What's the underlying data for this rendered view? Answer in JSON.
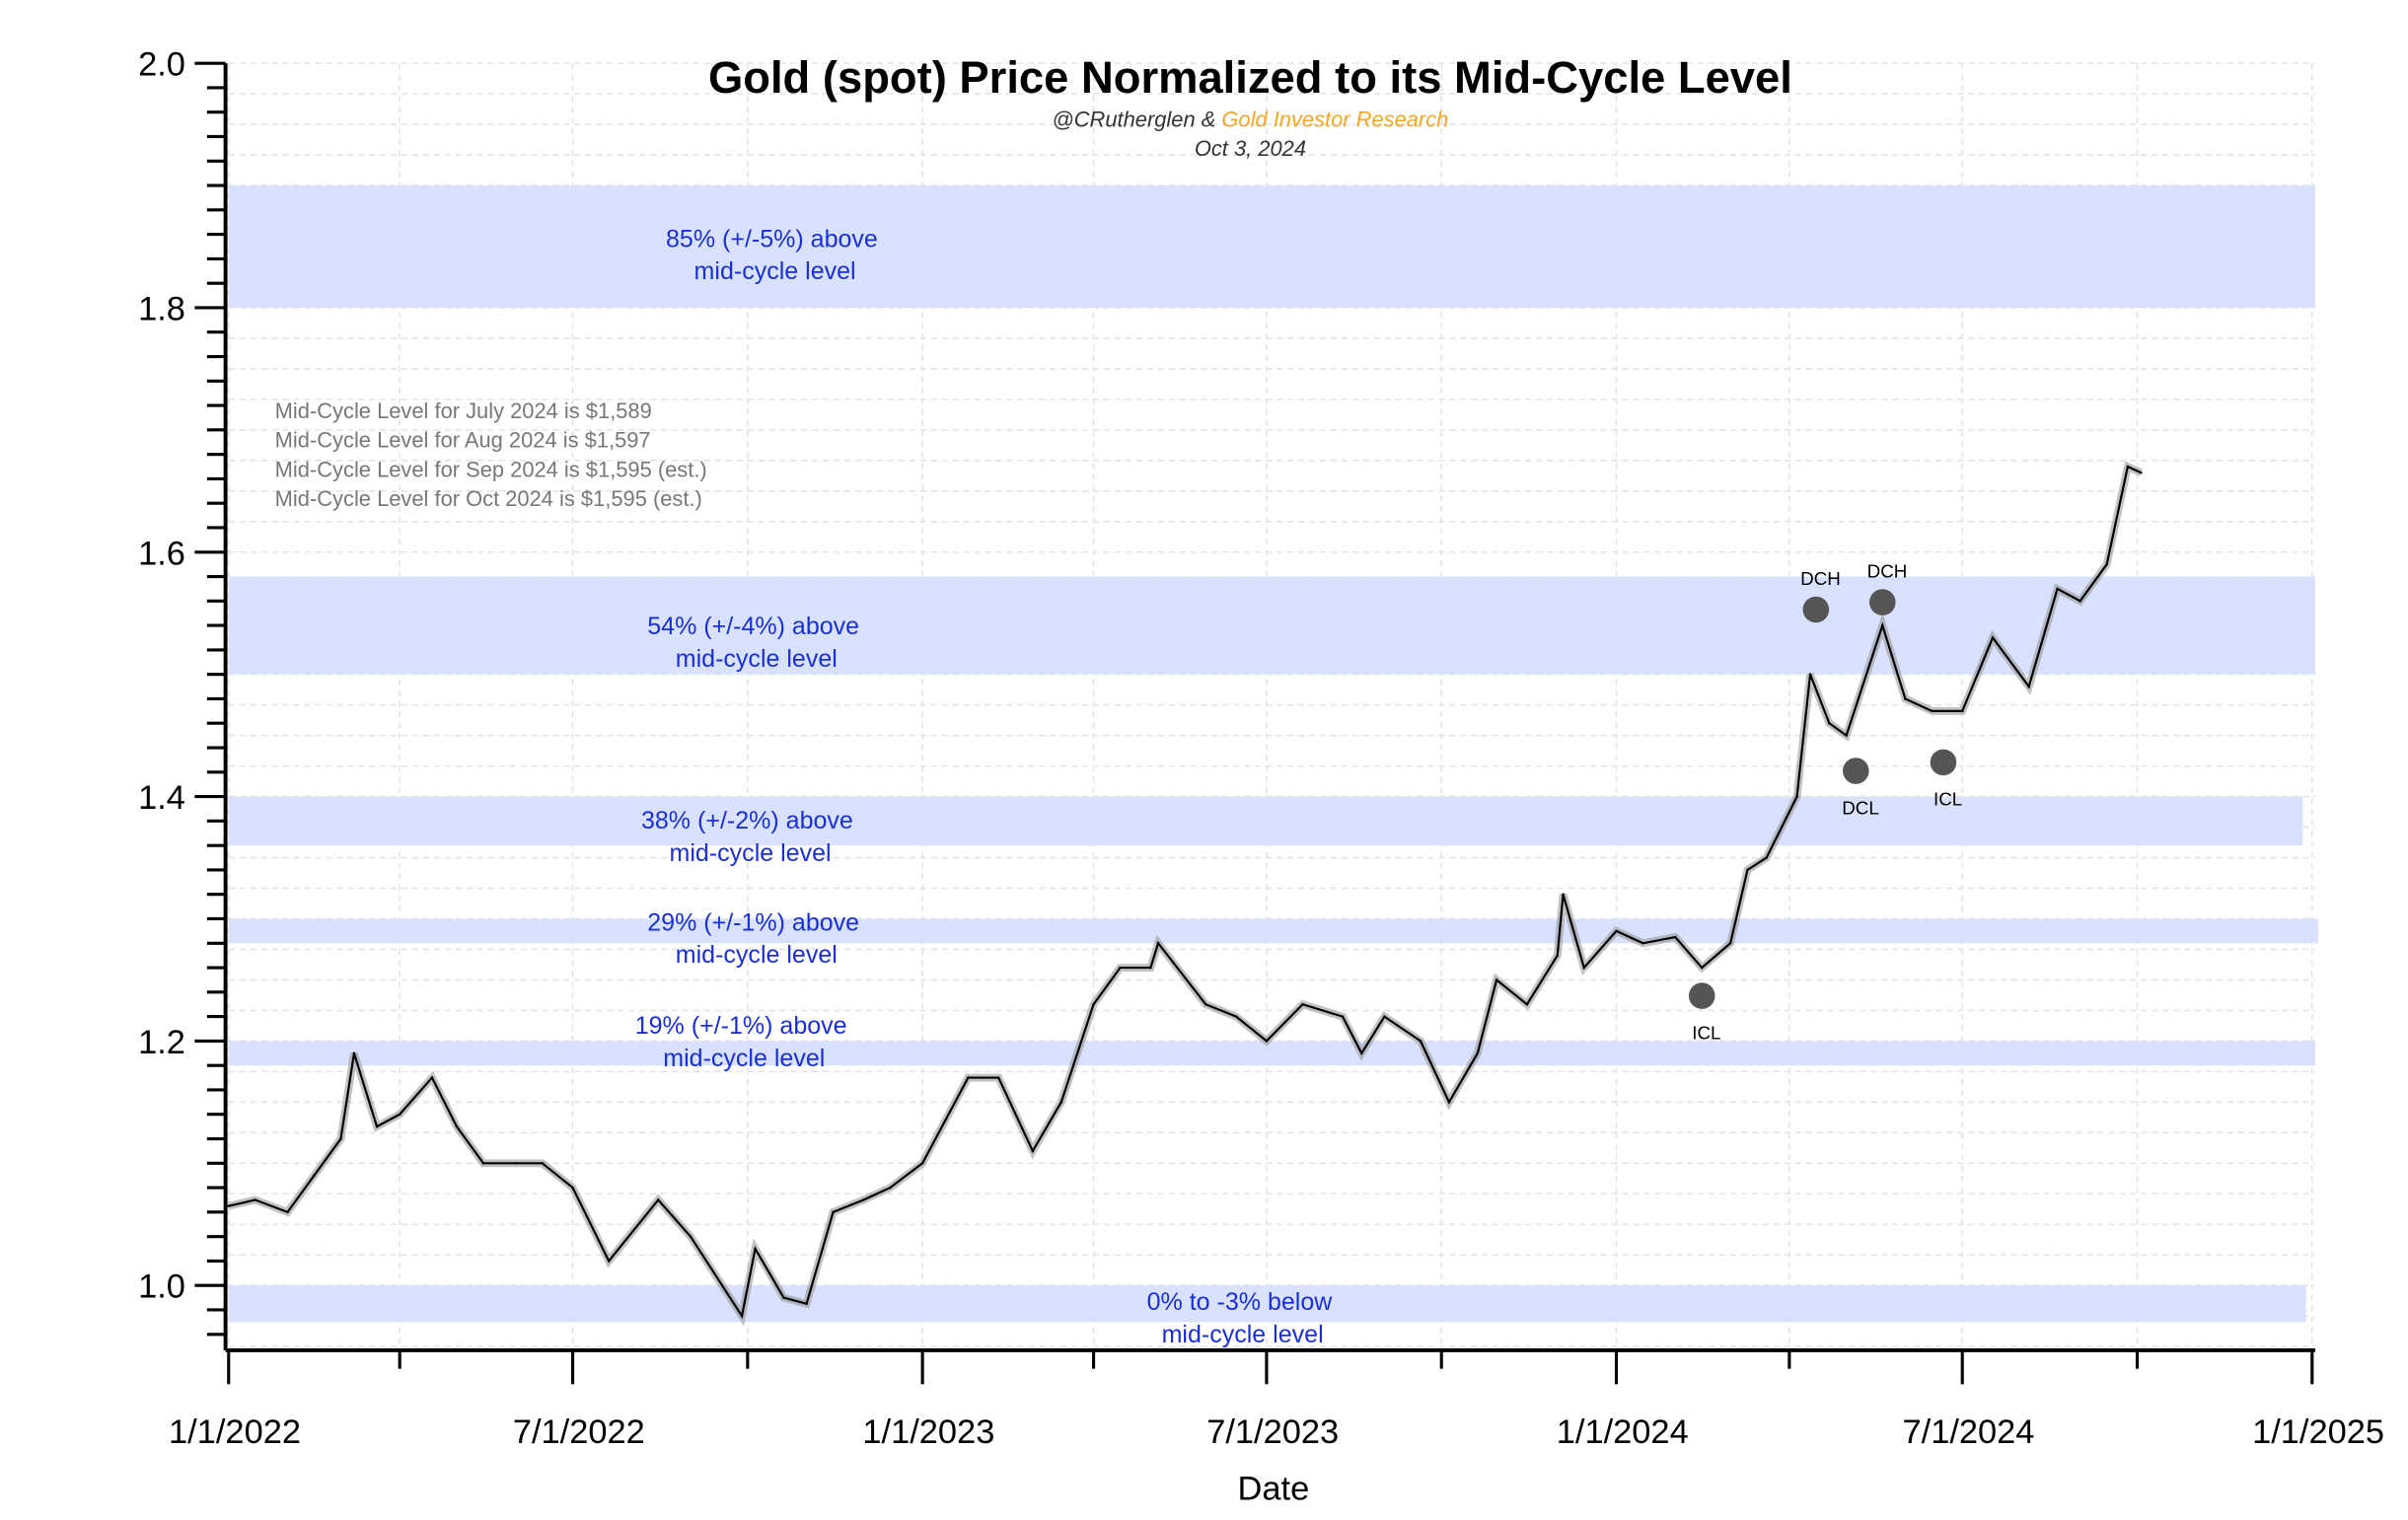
{
  "chart_data": {
    "type": "line",
    "title": "Gold (spot) Price Normalized to its Mid-Cycle Level",
    "subtitle_author": "@CRutherglen & ",
    "subtitle_brand": "Gold Investor Research",
    "date": "Oct 3, 2024",
    "xlabel": "Date",
    "ylabel": "",
    "xlim": [
      "2022-01-01",
      "2025-01-01"
    ],
    "ylim": [
      0.947,
      2.0
    ],
    "grid": true,
    "x_ticks": [
      "1/1/2022",
      "7/1/2022",
      "1/1/2023",
      "7/1/2023",
      "1/1/2024",
      "7/1/2024",
      "1/1/2025"
    ],
    "x_tick_dates": [
      "2022-01-01",
      "2022-07-01",
      "2023-01-01",
      "2023-07-01",
      "2024-01-01",
      "2024-07-01",
      "2025-01-01"
    ],
    "y_ticks": [
      "1.0",
      "1.2",
      "1.4",
      "1.6",
      "1.8",
      "2.0"
    ],
    "y_tick_values": [
      1.0,
      1.2,
      1.4,
      1.6,
      1.8,
      2.0
    ],
    "colors": {
      "line": "#000000",
      "band": "#d6e0ff",
      "band_text": "#1a2fd6",
      "brand": "#f5a623",
      "marker": "#555555",
      "note": "#777777"
    },
    "notes": [
      "Mid-Cycle Level for July 2024 is $1,589",
      "Mid-Cycle Level for Aug 2024 is $1,597",
      "Mid-Cycle Level for Sep 2024 is $1,595 (est.)",
      "Mid-Cycle Level for Oct 2024 is $1,595 (est.)"
    ],
    "bands": [
      {
        "low": 1.8,
        "high": 1.9,
        "line1": "85% (+/-5%) above",
        "line2": "mid-cycle level"
      },
      {
        "low": 1.5,
        "high": 1.58,
        "line1": "54% (+/-4%) above",
        "line2": "mid-cycle level"
      },
      {
        "low": 1.36,
        "high": 1.4,
        "line1": "38% (+/-2%) above",
        "line2": "mid-cycle level"
      },
      {
        "low": 1.28,
        "high": 1.3,
        "line1": "29% (+/-1%) above",
        "line2": "mid-cycle level"
      },
      {
        "low": 1.18,
        "high": 1.2,
        "line1": "19% (+/-1%) above",
        "line2": "mid-cycle level"
      },
      {
        "low": 0.97,
        "high": 1.0,
        "line1": "0% to -3% below",
        "line2": "mid-cycle level"
      }
    ],
    "markers": [
      {
        "label": "ICL",
        "date": "2024-02-15",
        "value": 1.237
      },
      {
        "label": "DCH",
        "date": "2024-04-15",
        "value": 1.553
      },
      {
        "label": "DCL",
        "date": "2024-05-06",
        "value": 1.421
      },
      {
        "label": "DCH",
        "date": "2024-05-20",
        "value": 1.559
      },
      {
        "label": "ICL",
        "date": "2024-06-21",
        "value": 1.428
      }
    ],
    "series": [
      {
        "x": [
          "2022-01-01",
          "2022-01-15",
          "2022-02-01",
          "2022-02-15",
          "2022-03-01",
          "2022-03-08",
          "2022-03-20",
          "2022-04-01",
          "2022-04-18",
          "2022-05-01",
          "2022-05-15",
          "2022-06-01",
          "2022-06-15",
          "2022-07-01",
          "2022-07-20",
          "2022-08-15",
          "2022-09-01",
          "2022-09-28",
          "2022-10-05",
          "2022-10-20",
          "2022-11-01",
          "2022-11-15",
          "2022-12-01",
          "2022-12-15",
          "2023-01-01",
          "2023-01-25",
          "2023-02-10",
          "2023-02-28",
          "2023-03-15",
          "2023-04-01",
          "2023-04-15",
          "2023-05-01",
          "2023-05-05",
          "2023-05-30",
          "2023-06-15",
          "2023-07-01",
          "2023-07-20",
          "2023-08-10",
          "2023-08-20",
          "2023-09-01",
          "2023-09-20",
          "2023-10-05",
          "2023-10-20",
          "2023-10-30",
          "2023-11-15",
          "2023-12-01",
          "2023-12-04",
          "2023-12-15",
          "2024-01-01",
          "2024-01-15",
          "2024-02-01",
          "2024-02-15",
          "2024-03-01",
          "2024-03-10",
          "2024-03-20",
          "2024-04-05",
          "2024-04-12",
          "2024-04-22",
          "2024-05-01",
          "2024-05-20",
          "2024-06-01",
          "2024-06-15",
          "2024-07-01",
          "2024-07-17",
          "2024-08-05",
          "2024-08-20",
          "2024-09-01",
          "2024-09-15",
          "2024-09-26",
          "2024-10-03"
        ],
        "values": [
          1.065,
          1.07,
          1.06,
          1.09,
          1.12,
          1.19,
          1.13,
          1.14,
          1.17,
          1.13,
          1.1,
          1.1,
          1.1,
          1.08,
          1.02,
          1.07,
          1.04,
          0.975,
          1.03,
          0.99,
          0.985,
          1.06,
          1.07,
          1.08,
          1.1,
          1.17,
          1.17,
          1.11,
          1.15,
          1.23,
          1.26,
          1.26,
          1.28,
          1.23,
          1.22,
          1.2,
          1.23,
          1.22,
          1.19,
          1.22,
          1.2,
          1.15,
          1.19,
          1.25,
          1.23,
          1.27,
          1.32,
          1.26,
          1.29,
          1.28,
          1.285,
          1.26,
          1.28,
          1.34,
          1.35,
          1.4,
          1.5,
          1.46,
          1.45,
          1.54,
          1.48,
          1.47,
          1.47,
          1.53,
          1.49,
          1.57,
          1.56,
          1.59,
          1.67,
          1.665
        ]
      }
    ]
  }
}
